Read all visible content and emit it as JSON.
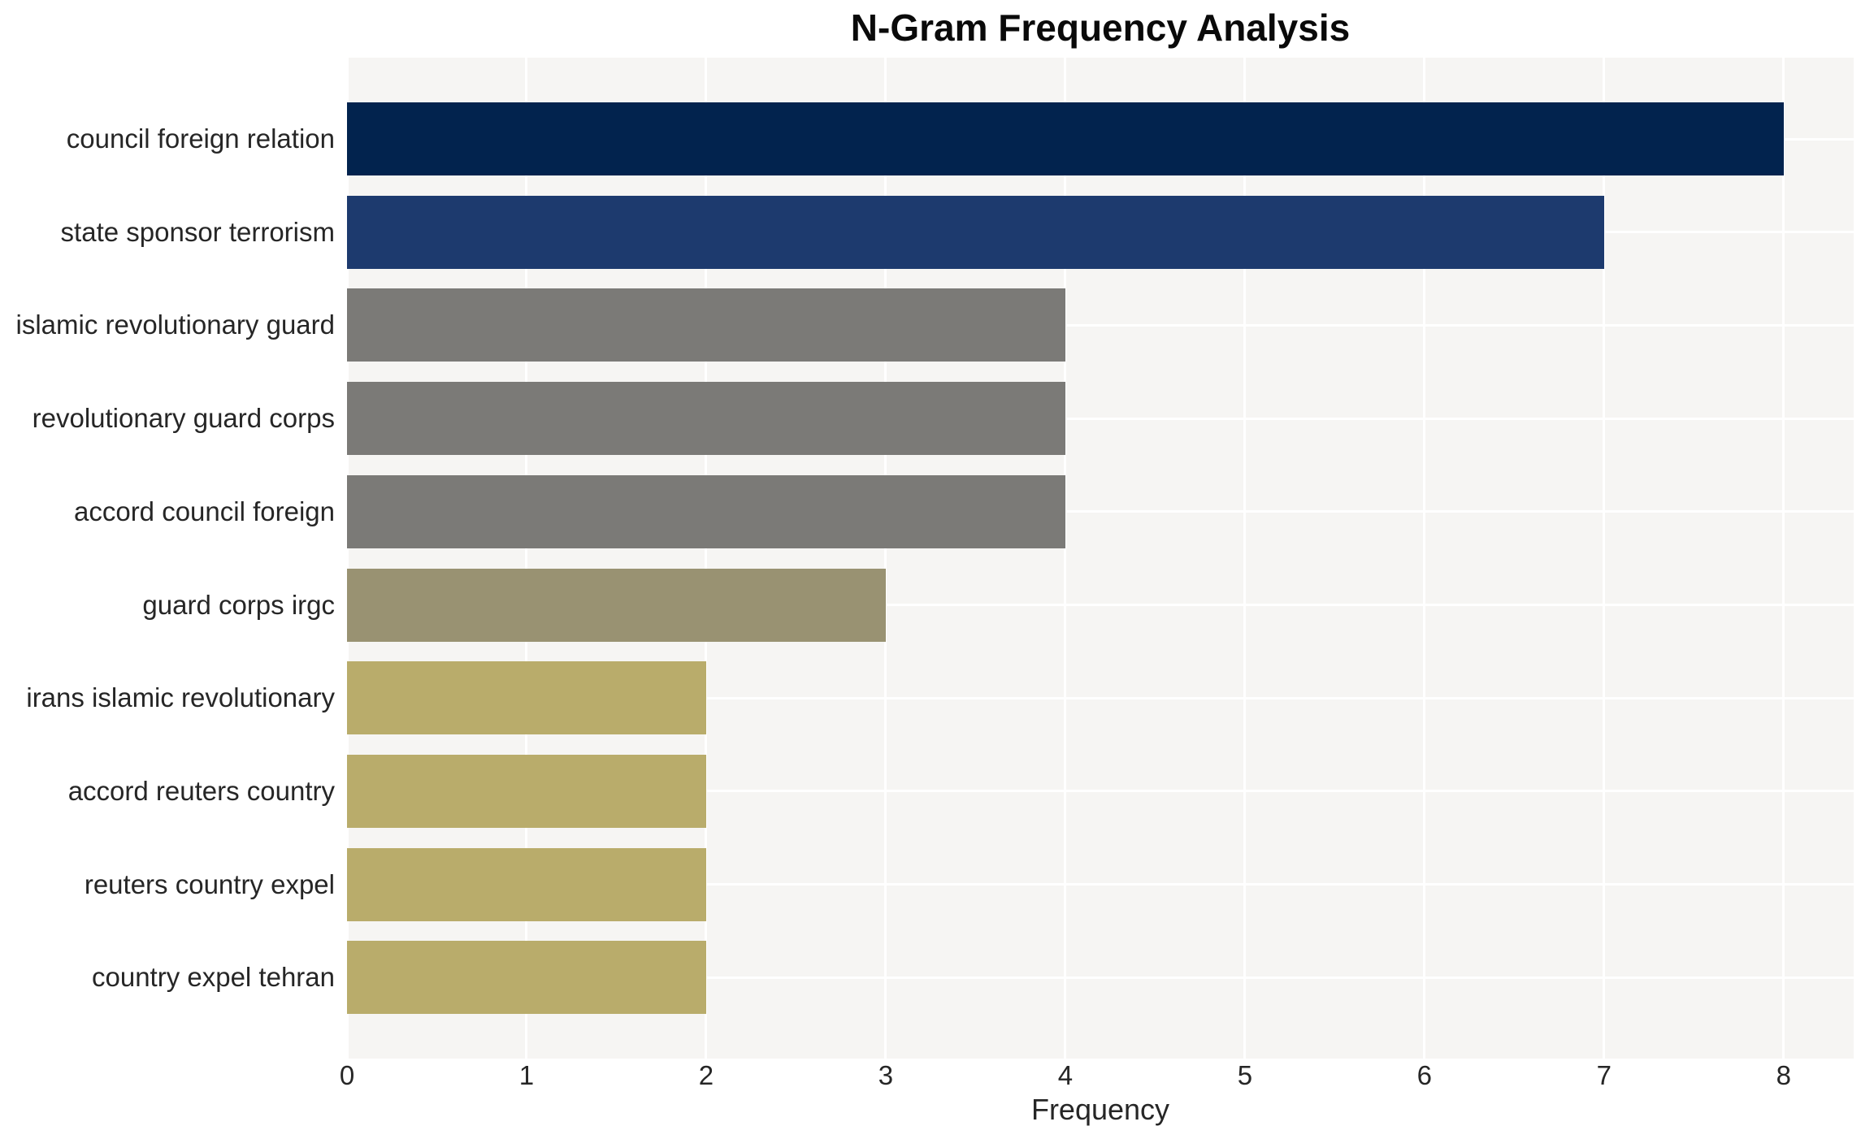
{
  "chart_data": {
    "type": "bar",
    "orientation": "horizontal",
    "title": "N-Gram Frequency Analysis",
    "xlabel": "Frequency",
    "ylabel": "",
    "categories": [
      "council foreign relation",
      "state sponsor terrorism",
      "islamic revolutionary guard",
      "revolutionary guard corps",
      "accord council foreign",
      "guard corps irgc",
      "irans islamic revolutionary",
      "accord reuters country",
      "reuters country expel",
      "country expel tehran"
    ],
    "values": [
      8,
      7,
      4,
      4,
      4,
      3,
      2,
      2,
      2,
      2
    ],
    "bar_colors": [
      "#02234e",
      "#1d3a6e",
      "#7b7a77",
      "#7b7a77",
      "#7b7a77",
      "#999272",
      "#b9ac6b",
      "#b9ac6b",
      "#b9ac6b",
      "#b9ac6b"
    ],
    "xticks": [
      0,
      1,
      2,
      3,
      4,
      5,
      6,
      7,
      8
    ],
    "xlim": [
      0,
      8.39
    ],
    "grid": true,
    "legend_visible": false,
    "plot_bg_color": "#f6f5f3",
    "grid_color": "#ffffff",
    "text_color": "#262626"
  }
}
